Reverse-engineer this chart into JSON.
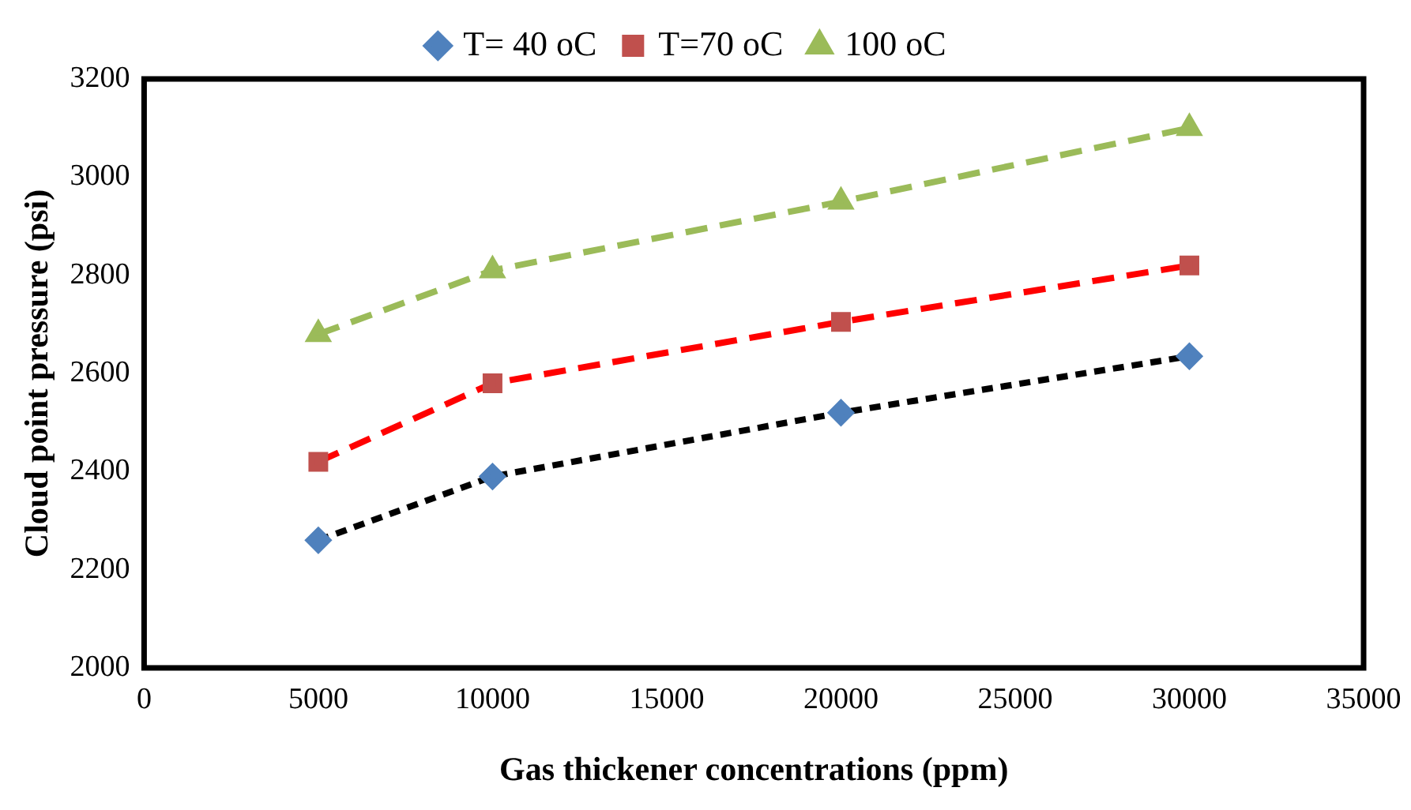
{
  "chart_data": {
    "type": "line",
    "xlabel": "Gas thickener concentrations (ppm)",
    "ylabel": "Cloud point pressure (psi)",
    "x": [
      5000,
      10000,
      20000,
      30000
    ],
    "series": [
      {
        "name": "T= 40 oC",
        "color": "#000000",
        "colors": [
          "#4f81bd",
          "#4f81bd",
          "#4f81bd",
          "#4f81bd"
        ],
        "marker": "diamond",
        "line_style": "dotted",
        "values": [
          2260,
          2390,
          2520,
          2635
        ]
      },
      {
        "name": "T=70 oC",
        "color": "#ff0000",
        "colors": [
          "#c0504d",
          "#c0504d",
          "#c0504d",
          "#c0504d"
        ],
        "marker": "square",
        "line_style": "dashed",
        "values": [
          2420,
          2580,
          2705,
          2820
        ]
      },
      {
        "name": "100 oC",
        "color": "#9bbb59",
        "colors": [
          "#9bbb59",
          "#9bbb59",
          "#9bbb59",
          "#9bbb59"
        ],
        "marker": "triangle",
        "line_style": "dashed",
        "values": [
          2680,
          2810,
          2950,
          3100
        ]
      }
    ],
    "xlim": [
      0,
      35000
    ],
    "xticks": [
      0,
      5000,
      10000,
      15000,
      20000,
      25000,
      30000,
      35000
    ],
    "ylim": [
      2000,
      3200
    ],
    "yticks": [
      2000,
      2200,
      2400,
      2600,
      2800,
      3000,
      3200
    ],
    "grid": false,
    "legend": "top"
  }
}
